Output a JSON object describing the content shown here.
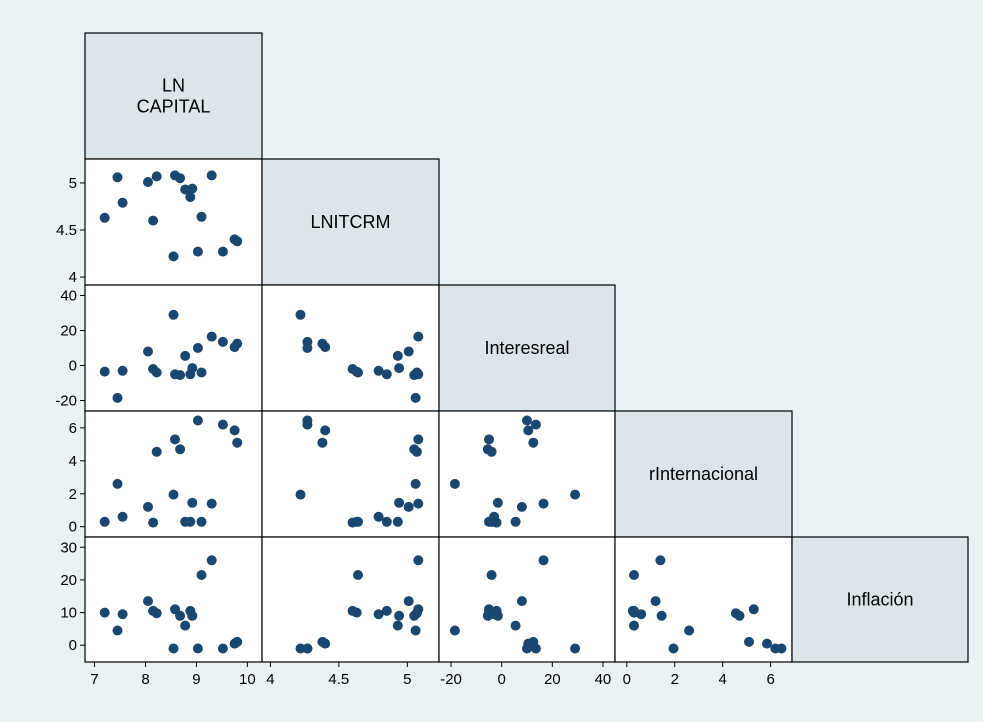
{
  "chart_data": {
    "type": "scatter",
    "subtype": "scatterplot-matrix-lower-triangle",
    "marker_color": "#1a476f",
    "diagonal_fill": "#dce6ea",
    "background": "#eaf2f3",
    "variables": [
      {
        "name": "LN\nCAPITAL",
        "key": "lncapital",
        "ticks": [
          7,
          8,
          9,
          10
        ],
        "range": [
          6.95,
          10.15
        ],
        "tick_side": "bottom"
      },
      {
        "name": "LNITCRM",
        "key": "lnitcrm",
        "ticks": [
          4,
          4.5,
          5
        ],
        "range": [
          3.99,
          5.18
        ],
        "tick_side": "both"
      },
      {
        "name": "Interesreal",
        "key": "interesreal",
        "ticks": [
          -20,
          0,
          20,
          40
        ],
        "range": [
          -22,
          42
        ],
        "tick_side": "both"
      },
      {
        "name": "rInternacional",
        "key": "rinternacional",
        "ticks": [
          0,
          2,
          4,
          6
        ],
        "range": [
          -0.2,
          6.6
        ],
        "tick_side": "both"
      },
      {
        "name": "Inflación",
        "key": "inflacion",
        "ticks": [
          0,
          10,
          20,
          30
        ],
        "range": [
          -3,
          31
        ],
        "tick_side": "left"
      }
    ],
    "observations": [
      {
        "lncapital": 7.2,
        "lnitcrm": 4.63,
        "interesreal": -3.5,
        "rinternacional": 0.3,
        "inflacion": 10.0
      },
      {
        "lncapital": 7.45,
        "lnitcrm": 5.06,
        "interesreal": -18.5,
        "rinternacional": 2.6,
        "inflacion": 4.5
      },
      {
        "lncapital": 7.55,
        "lnitcrm": 4.79,
        "interesreal": -3.0,
        "rinternacional": 0.6,
        "inflacion": 9.5
      },
      {
        "lncapital": 8.05,
        "lnitcrm": 5.01,
        "interesreal": 8.0,
        "rinternacional": 1.2,
        "inflacion": 13.5
      },
      {
        "lncapital": 8.15,
        "lnitcrm": 4.6,
        "interesreal": -2.0,
        "rinternacional": 0.25,
        "inflacion": 10.5
      },
      {
        "lncapital": 8.22,
        "lnitcrm": 5.07,
        "interesreal": -4.0,
        "rinternacional": 4.55,
        "inflacion": 9.8
      },
      {
        "lncapital": 8.55,
        "lnitcrm": 4.22,
        "interesreal": 29.0,
        "rinternacional": 1.95,
        "inflacion": -1.0
      },
      {
        "lncapital": 8.58,
        "lnitcrm": 5.08,
        "interesreal": -5.0,
        "rinternacional": 5.3,
        "inflacion": 11.0
      },
      {
        "lncapital": 8.68,
        "lnitcrm": 5.05,
        "interesreal": -5.5,
        "rinternacional": 4.7,
        "inflacion": 9.0
      },
      {
        "lncapital": 8.78,
        "lnitcrm": 4.93,
        "interesreal": 5.5,
        "rinternacional": 0.3,
        "inflacion": 6.0
      },
      {
        "lncapital": 8.88,
        "lnitcrm": 4.85,
        "interesreal": -5.0,
        "rinternacional": 0.3,
        "inflacion": 10.5
      },
      {
        "lncapital": 8.92,
        "lnitcrm": 4.94,
        "interesreal": -1.5,
        "rinternacional": 1.45,
        "inflacion": 9.0
      },
      {
        "lncapital": 9.03,
        "lnitcrm": 4.27,
        "interesreal": 10.0,
        "rinternacional": 6.45,
        "inflacion": -1.0
      },
      {
        "lncapital": 9.1,
        "lnitcrm": 4.64,
        "interesreal": -4.0,
        "rinternacional": 0.3,
        "inflacion": 21.5
      },
      {
        "lncapital": 9.3,
        "lnitcrm": 5.08,
        "interesreal": 16.5,
        "rinternacional": 1.4,
        "inflacion": 26.0
      },
      {
        "lncapital": 9.52,
        "lnitcrm": 4.27,
        "interesreal": 13.5,
        "rinternacional": 6.2,
        "inflacion": -1.0
      },
      {
        "lncapital": 9.75,
        "lnitcrm": 4.4,
        "interesreal": 10.5,
        "rinternacional": 5.85,
        "inflacion": 0.5
      },
      {
        "lncapital": 9.8,
        "lnitcrm": 4.38,
        "interesreal": 12.5,
        "rinternacional": 5.1,
        "inflacion": 1.0
      }
    ]
  }
}
